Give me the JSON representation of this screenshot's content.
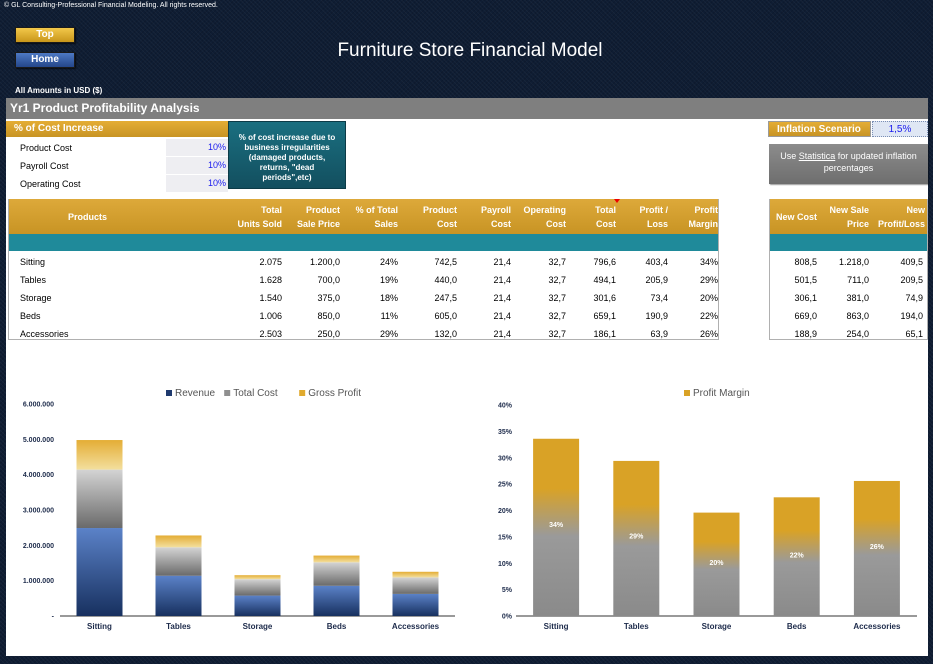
{
  "copyright": "© GL Consulting-Professional Financial Modeling. All rights reserved.",
  "nav": {
    "top_label": "Top",
    "home_label": "Home"
  },
  "page_title": "Furniture Store Financial Model",
  "amounts_note": "All Amounts in  USD ($)",
  "section_title": "Yr1 Product Profitability Analysis",
  "cost_increase": {
    "header": "% of Cost Increase",
    "rows": [
      {
        "label": "Product Cost",
        "value": "10%"
      },
      {
        "label": "Payroll Cost",
        "value": "10%"
      },
      {
        "label": "Operating Cost",
        "value": "10%"
      }
    ],
    "note": "% of cost increase due to business irregularities (damaged products, returns, \"dead periods\",etc)"
  },
  "inflation": {
    "label": "Inflation Scenario",
    "value": "1,5%",
    "note_prefix": "Use ",
    "note_link": "Statistica",
    "note_suffix": " for updated inflation percentages"
  },
  "table": {
    "headers": {
      "products": "Products",
      "units": [
        "Total",
        "Units Sold"
      ],
      "price": [
        "Product",
        "Sale Price"
      ],
      "pct_sales": [
        "% of Total",
        "Sales"
      ],
      "product_cost": [
        "Product",
        "Cost"
      ],
      "payroll_cost": [
        "Payroll",
        "Cost"
      ],
      "operating_cost": [
        "Operating",
        "Cost"
      ],
      "total_cost": [
        "Total",
        "Cost"
      ],
      "profit": [
        "Profit /",
        "Loss"
      ],
      "margin": [
        "Profit",
        "Margin"
      ]
    },
    "rows": [
      {
        "name": "Sitting",
        "units": "2.075",
        "price": "1.200,0",
        "pct_sales": "24%",
        "product_cost": "742,5",
        "payroll_cost": "21,4",
        "operating_cost": "32,7",
        "total_cost": "796,6",
        "profit": "403,4",
        "margin": "34%"
      },
      {
        "name": "Tables",
        "units": "1.628",
        "price": "700,0",
        "pct_sales": "19%",
        "product_cost": "440,0",
        "payroll_cost": "21,4",
        "operating_cost": "32,7",
        "total_cost": "494,1",
        "profit": "205,9",
        "margin": "29%"
      },
      {
        "name": "Storage",
        "units": "1.540",
        "price": "375,0",
        "pct_sales": "18%",
        "product_cost": "247,5",
        "payroll_cost": "21,4",
        "operating_cost": "32,7",
        "total_cost": "301,6",
        "profit": "73,4",
        "margin": "20%"
      },
      {
        "name": "Beds",
        "units": "1.006",
        "price": "850,0",
        "pct_sales": "11%",
        "product_cost": "605,0",
        "payroll_cost": "21,4",
        "operating_cost": "32,7",
        "total_cost": "659,1",
        "profit": "190,9",
        "margin": "22%"
      },
      {
        "name": "Accessories",
        "units": "2.503",
        "price": "250,0",
        "pct_sales": "29%",
        "product_cost": "132,0",
        "payroll_cost": "21,4",
        "operating_cost": "32,7",
        "total_cost": "186,1",
        "profit": "63,9",
        "margin": "26%"
      }
    ]
  },
  "right_table": {
    "headers": {
      "new_cost": "New Cost",
      "new_price": [
        "New Sale",
        "Price"
      ],
      "new_profit": [
        "New",
        "Profit/Loss"
      ]
    },
    "rows": [
      {
        "new_cost": "808,5",
        "new_price": "1.218,0",
        "new_profit": "409,5"
      },
      {
        "new_cost": "501,5",
        "new_price": "711,0",
        "new_profit": "209,5"
      },
      {
        "new_cost": "306,1",
        "new_price": "381,0",
        "new_profit": "74,9"
      },
      {
        "new_cost": "669,0",
        "new_price": "863,0",
        "new_profit": "194,0"
      },
      {
        "new_cost": "188,9",
        "new_price": "254,0",
        "new_profit": "65,1"
      }
    ]
  },
  "colors": {
    "gold": "#d4a02c",
    "teal": "#1f8a9a",
    "navy": "#1f3a6e",
    "gray": "#808080",
    "input_blue": "#1a1aee"
  },
  "chart_data": [
    {
      "type": "bar",
      "stacked": true,
      "categories": [
        "Sitting",
        "Tables",
        "Storage",
        "Beds",
        "Accessories"
      ],
      "series": [
        {
          "name": "Revenue",
          "values": [
            2490000,
            1139600,
            577500,
            855100,
            625750
          ]
        },
        {
          "name": "Total Cost",
          "values": [
            1653000,
            804400,
            464500,
            663100,
            465800
          ]
        },
        {
          "name": "Gross Profit",
          "values": [
            837000,
            335200,
            113000,
            192000,
            159950
          ]
        }
      ],
      "ylim": [
        0,
        6000000
      ],
      "yticks": [
        "-",
        "1.000.000",
        "2.000.000",
        "3.000.000",
        "4.000.000",
        "5.000.000",
        "6.000.000"
      ],
      "legend": "top",
      "grid": false
    },
    {
      "type": "bar",
      "categories": [
        "Sitting",
        "Tables",
        "Storage",
        "Beds",
        "Accessories"
      ],
      "series": [
        {
          "name": "Profit Margin",
          "values": [
            0.336,
            0.294,
            0.196,
            0.225,
            0.256
          ],
          "labels": [
            "34%",
            "29%",
            "20%",
            "22%",
            "26%"
          ]
        }
      ],
      "ylim": [
        0,
        0.4
      ],
      "yticks": [
        "0%",
        "5%",
        "10%",
        "15%",
        "20%",
        "25%",
        "30%",
        "35%",
        "40%"
      ],
      "legend": "top",
      "grid": false
    }
  ]
}
